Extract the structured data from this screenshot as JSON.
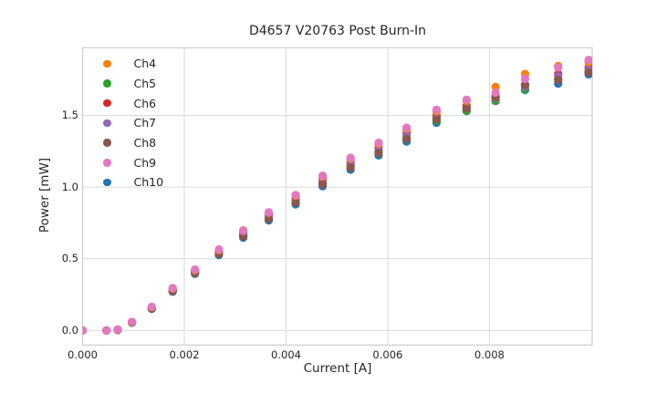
{
  "chart_data": {
    "type": "scatter",
    "title": "D4657 V20763 Post Burn-In",
    "xlabel": "Current [A]",
    "ylabel": "Power [mW]",
    "grid": true,
    "grid_color": "#d9d9d9",
    "spine_color": "#cccccc",
    "legend_position": "upper left",
    "marker_radius": 4.6,
    "axes": {
      "xlim": [
        0.0,
        0.01002
      ],
      "ylim": [
        -0.102,
        1.973
      ],
      "x_tick_values": [
        0.0,
        0.002,
        0.004,
        0.006,
        0.008
      ],
      "x_tick_labels": [
        "0.000",
        "0.002",
        "0.004",
        "0.006",
        "0.008"
      ],
      "y_tick_values": [
        0.0,
        0.5,
        1.0,
        1.5
      ],
      "y_tick_labels": [
        "0.0",
        "0.5",
        "1.0",
        "1.5"
      ]
    },
    "x": [
      0.0,
      0.00047,
      0.00069,
      0.00097,
      0.00136,
      0.00177,
      0.00221,
      0.00268,
      0.00316,
      0.00366,
      0.00419,
      0.00472,
      0.00527,
      0.00582,
      0.00637,
      0.00696,
      0.00755,
      0.00812,
      0.0087,
      0.00935,
      0.00995
    ],
    "series": [
      {
        "name": "Ch4",
        "color": "#ff7f0e",
        "values": [
          0.0,
          0.0,
          0.006,
          0.059,
          0.163,
          0.292,
          0.421,
          0.56,
          0.698,
          0.82,
          0.94,
          1.073,
          1.198,
          1.302,
          1.407,
          1.528,
          1.602,
          1.7,
          1.79,
          1.845,
          1.872
        ]
      },
      {
        "name": "Ch5",
        "color": "#2ca02c",
        "values": [
          0.0,
          0.0,
          0.004,
          0.055,
          0.155,
          0.277,
          0.404,
          0.538,
          0.662,
          0.785,
          0.9,
          1.029,
          1.148,
          1.248,
          1.348,
          1.465,
          1.533,
          1.602,
          1.683,
          1.753,
          1.803
        ]
      },
      {
        "name": "Ch6",
        "color": "#d62728",
        "values": [
          0.0,
          0.0,
          0.005,
          0.057,
          0.159,
          0.284,
          0.413,
          0.549,
          0.677,
          0.803,
          0.92,
          1.051,
          1.173,
          1.275,
          1.377,
          1.497,
          1.565,
          1.634,
          1.716,
          1.788,
          1.835
        ]
      },
      {
        "name": "Ch7",
        "color": "#9467bd",
        "values": [
          0.0,
          0.0,
          0.005,
          0.056,
          0.157,
          0.281,
          0.409,
          0.544,
          0.671,
          0.795,
          0.912,
          1.042,
          1.163,
          1.264,
          1.365,
          1.484,
          1.552,
          1.62,
          1.702,
          1.773,
          1.822
        ]
      },
      {
        "name": "Ch8",
        "color": "#8c564b",
        "values": [
          0.0,
          0.0,
          0.005,
          0.055,
          0.154,
          0.275,
          0.401,
          0.533,
          0.657,
          0.778,
          0.893,
          1.02,
          1.138,
          1.238,
          1.337,
          1.473,
          1.549,
          1.627,
          1.713,
          1.748,
          1.801
        ]
      },
      {
        "name": "Ch9",
        "color": "#e377c2",
        "values": [
          0.0,
          0.0,
          0.006,
          0.06,
          0.165,
          0.295,
          0.425,
          0.565,
          0.695,
          0.825,
          0.945,
          1.08,
          1.205,
          1.31,
          1.415,
          1.54,
          1.61,
          1.66,
          1.755,
          1.835,
          1.888
        ]
      },
      {
        "name": "Ch10",
        "color": "#1f77b4",
        "values": [
          0.0,
          0.0,
          0.003,
          0.053,
          0.151,
          0.27,
          0.395,
          0.526,
          0.648,
          0.768,
          0.88,
          1.006,
          1.122,
          1.221,
          1.318,
          1.45,
          1.532,
          1.601,
          1.678,
          1.722,
          1.787
        ]
      }
    ],
    "draw_order": [
      "Ch10",
      "Ch5",
      "Ch6",
      "Ch7",
      "Ch8",
      "Ch4",
      "Ch9"
    ]
  }
}
